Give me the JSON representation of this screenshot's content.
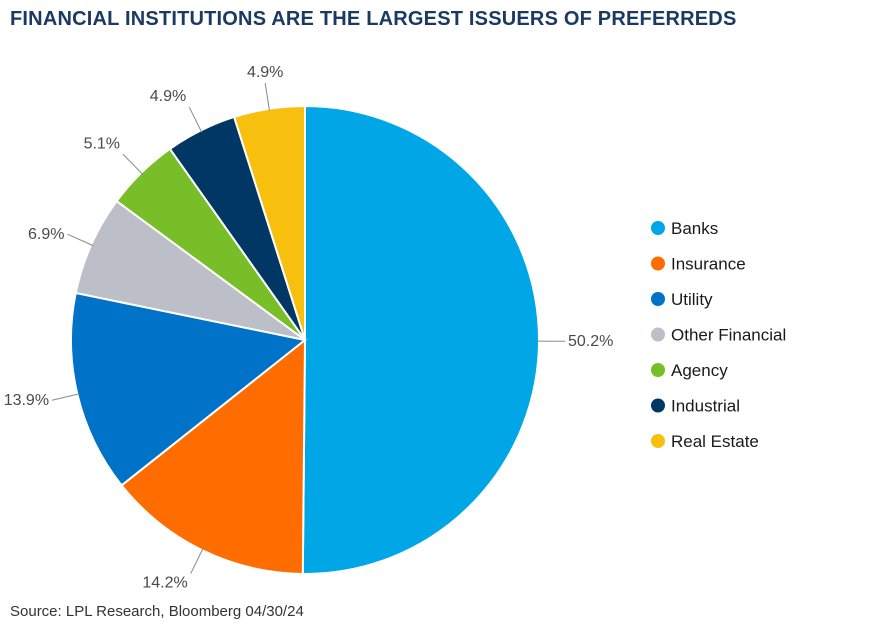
{
  "title": "FINANCIAL INSTITUTIONS ARE THE LARGEST ISSUERS OF PREFERREDS",
  "source": "Source: LPL Research, Bloomberg 04/30/24",
  "chart_data": {
    "type": "pie",
    "legend_position": "right",
    "slices": [
      {
        "name": "Banks",
        "value": 50.2,
        "label": "50.2%",
        "color": "#00a6e6"
      },
      {
        "name": "Insurance",
        "value": 14.2,
        "label": "14.2%",
        "color": "#ff6d00"
      },
      {
        "name": "Utility",
        "value": 13.9,
        "label": "13.9%",
        "color": "#0073c8"
      },
      {
        "name": "Other Financial",
        "value": 6.9,
        "label": "6.9%",
        "color": "#bcbec8"
      },
      {
        "name": "Agency",
        "value": 5.1,
        "label": "5.1%",
        "color": "#77be28"
      },
      {
        "name": "Industrial",
        "value": 4.9,
        "label": "4.9%",
        "color": "#003764"
      },
      {
        "name": "Real Estate",
        "value": 4.9,
        "label": "4.9%",
        "color": "#f7c00e"
      }
    ]
  }
}
